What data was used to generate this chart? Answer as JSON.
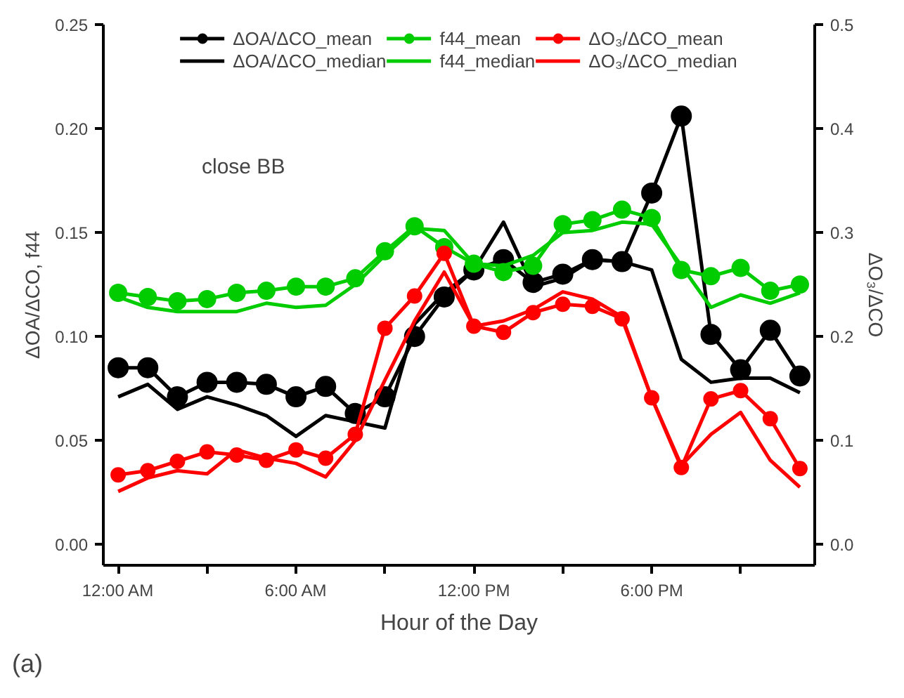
{
  "chart_data": {
    "type": "line",
    "xlabel": "Hour of the Day",
    "ylabel": "ΔOA/ΔCO, f44",
    "y2label": "ΔO₃/ΔCO",
    "annotations": [
      "close BB",
      "(a)"
    ],
    "x": [
      0,
      1,
      2,
      3,
      4,
      5,
      6,
      7,
      8,
      9,
      10,
      11,
      12,
      13,
      14,
      15,
      16,
      17,
      18,
      19,
      20,
      21,
      22,
      23
    ],
    "xlim": [
      -0.5,
      23.5
    ],
    "xticks": [
      {
        "value": 0,
        "label": "12:00 AM"
      },
      {
        "value": 3,
        "label": null
      },
      {
        "value": 6,
        "label": "6:00 AM"
      },
      {
        "value": 9,
        "label": null
      },
      {
        "value": 12,
        "label": "12:00 PM"
      },
      {
        "value": 15,
        "label": null
      },
      {
        "value": 18,
        "label": "6:00 PM"
      },
      {
        "value": 21,
        "label": null
      }
    ],
    "ylim": [
      -0.01,
      0.25
    ],
    "yticks": [
      {
        "value": 0,
        "label": "0.00"
      },
      {
        "value": 0.05,
        "label": "0.05"
      },
      {
        "value": 0.1,
        "label": "0.10"
      },
      {
        "value": 0.15,
        "label": "0.15"
      },
      {
        "value": 0.2,
        "label": "0.20"
      },
      {
        "value": 0.25,
        "label": "0.25"
      }
    ],
    "y2lim": [
      -0.02,
      0.5
    ],
    "y2ticks": [
      {
        "value": 0,
        "label": "0.0"
      },
      {
        "value": 0.1,
        "label": "0.1"
      },
      {
        "value": 0.2,
        "label": "0.2"
      },
      {
        "value": 0.3,
        "label": "0.3"
      },
      {
        "value": 0.4,
        "label": "0.4"
      },
      {
        "value": 0.5,
        "label": "0.5"
      }
    ],
    "marker": "circle",
    "line_style": "solid",
    "grid": false,
    "legend": "top",
    "series": [
      {
        "name": "ΔOA/ΔCO_mean",
        "color": "#000000",
        "values": [
          0.085,
          0.085,
          0.071,
          0.078,
          0.078,
          0.077,
          0.071,
          0.076,
          0.063,
          0.071,
          0.1,
          0.119,
          0.132,
          0.137,
          0.126,
          0.13,
          0.137,
          0.136,
          0.169,
          0.206,
          0.101,
          0.084,
          0.103,
          0.081
        ]
      },
      {
        "name": "ΔOA/ΔCO_median",
        "color": "#000000",
        "marker": "none",
        "values": [
          0.071,
          0.077,
          0.065,
          0.071,
          0.067,
          0.062,
          0.052,
          0.062,
          0.059,
          0.056,
          0.106,
          0.121,
          0.132,
          0.155,
          0.124,
          0.128,
          0.137,
          0.136,
          0.132,
          0.089,
          0.078,
          0.08,
          0.08,
          0.073
        ]
      },
      {
        "name": "f44_mean",
        "color": "#00cc00",
        "values": [
          0.121,
          0.119,
          0.117,
          0.118,
          0.121,
          0.122,
          0.124,
          0.124,
          0.128,
          0.141,
          0.153,
          0.143,
          0.135,
          0.131,
          0.134,
          0.154,
          0.156,
          0.161,
          0.157,
          0.132,
          0.129,
          0.133,
          0.122,
          0.125
        ]
      },
      {
        "name": "f44_median",
        "color": "#00cc00",
        "marker": "none",
        "values": [
          0.119,
          0.114,
          0.112,
          0.112,
          0.112,
          0.116,
          0.114,
          0.115,
          0.125,
          0.139,
          0.152,
          0.151,
          0.135,
          0.134,
          0.139,
          0.15,
          0.151,
          0.155,
          0.154,
          0.134,
          0.114,
          0.12,
          0.116,
          0.121
        ]
      },
      {
        "name": "ΔO₃/ΔCO_mean",
        "color": "#ff0000",
        "axis": "y2",
        "values": [
          0.067,
          0.071,
          0.08,
          0.089,
          0.086,
          0.081,
          0.091,
          0.083,
          0.106,
          0.208,
          0.239,
          0.28,
          0.21,
          0.204,
          0.223,
          0.231,
          0.229,
          0.217,
          0.141,
          0.074,
          0.14,
          0.148,
          0.121,
          0.073
        ]
      },
      {
        "name": "ΔO₃/ΔCO_median",
        "color": "#ff0000",
        "axis": "y2",
        "marker": "none",
        "values": [
          0.051,
          0.064,
          0.071,
          0.068,
          0.091,
          0.083,
          0.078,
          0.065,
          0.1,
          0.158,
          0.215,
          0.262,
          0.21,
          0.215,
          0.226,
          0.243,
          0.236,
          0.219,
          0.141,
          0.076,
          0.106,
          0.127,
          0.081,
          0.055
        ]
      }
    ]
  }
}
